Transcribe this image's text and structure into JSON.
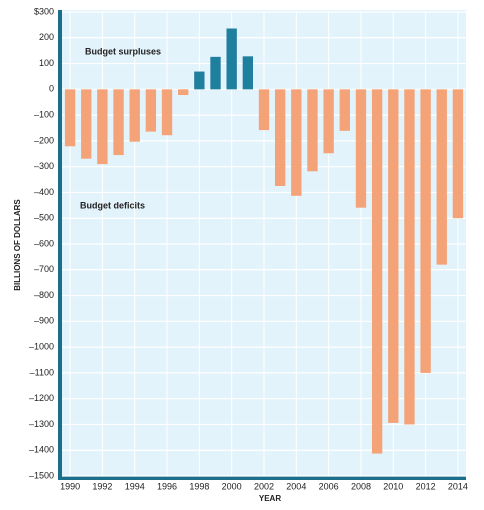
{
  "chart_data": {
    "type": "bar",
    "x": [
      1990,
      1991,
      1992,
      1993,
      1994,
      1995,
      1996,
      1997,
      1998,
      1999,
      2000,
      2001,
      2002,
      2003,
      2004,
      2005,
      2006,
      2007,
      2008,
      2009,
      2010,
      2011,
      2012,
      2013,
      2014
    ],
    "series": [
      {
        "name": "Budget surpluses",
        "color": "#1f7f9e",
        "values": [
          null,
          null,
          null,
          null,
          null,
          null,
          null,
          null,
          69,
          126,
          236,
          128,
          null,
          null,
          null,
          null,
          null,
          null,
          null,
          null,
          null,
          null,
          null,
          null,
          null
        ]
      },
      {
        "name": "Budget deficits",
        "color": "#f4a277",
        "values": [
          -221,
          -269,
          -290,
          -255,
          -203,
          -164,
          -178,
          -22,
          null,
          null,
          null,
          null,
          -158,
          -375,
          -413,
          -318,
          -248,
          -161,
          -459,
          -1413,
          -1294,
          -1300,
          -1100,
          -680,
          -500
        ]
      }
    ],
    "xlabel": "YEAR",
    "ylabel": "BILLIONS OF DOLLARS",
    "xlim": [
      1989.5,
      2014.5
    ],
    "xticks": [
      1990,
      1992,
      1994,
      1996,
      1998,
      2000,
      2002,
      2004,
      2006,
      2008,
      2010,
      2012,
      2014
    ],
    "ylim": [
      -1500,
      300
    ],
    "yticks": [
      {
        "value": 300,
        "label": "$300"
      },
      200,
      100,
      0,
      {
        "value": -100,
        "label": "–100"
      },
      {
        "value": -200,
        "label": "–200"
      },
      {
        "value": -300,
        "label": "–300"
      },
      {
        "value": -400,
        "label": "–400"
      },
      {
        "value": -500,
        "label": "–500"
      },
      {
        "value": -600,
        "label": "–600"
      },
      {
        "value": -700,
        "label": "–700"
      },
      {
        "value": -800,
        "label": "–800"
      },
      {
        "value": -900,
        "label": "–900"
      },
      {
        "value": -1000,
        "label": "–1000"
      },
      {
        "value": -1100,
        "label": "–1100"
      },
      {
        "value": -1200,
        "label": "–1200"
      },
      {
        "value": -1300,
        "label": "–1300"
      },
      {
        "value": -1400,
        "label": "–1400"
      },
      {
        "value": -1500,
        "label": "–1500"
      }
    ],
    "grid": true
  }
}
